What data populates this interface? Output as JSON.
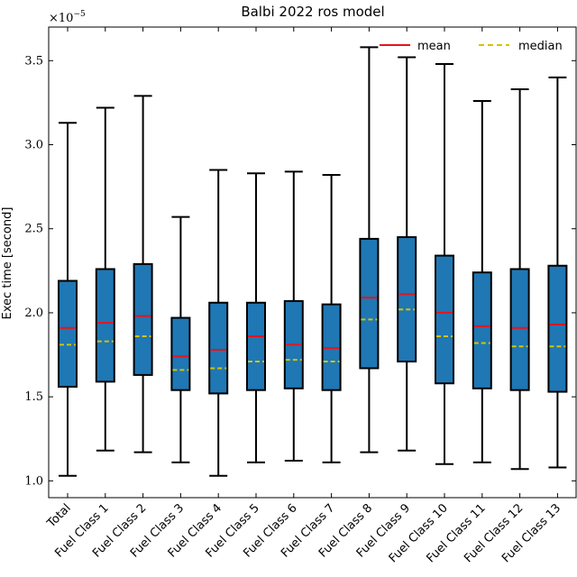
{
  "chart_data": {
    "type": "box",
    "title": "Balbi 2022 ros model",
    "ylabel": "Exec time [second]",
    "y_multiplier_label": "×10",
    "y_multiplier_exponent": "−5",
    "ylim": [
      0.9,
      3.7
    ],
    "yticks": [
      1.0,
      1.5,
      2.0,
      2.5,
      3.0,
      3.5
    ],
    "ytick_labels": [
      "1.0",
      "1.5",
      "2.0",
      "2.5",
      "3.0",
      "3.5"
    ],
    "legend": {
      "placement": "top-right",
      "entries": [
        {
          "label": "mean",
          "color": "#e8141c",
          "style": "solid"
        },
        {
          "label": "median",
          "color": "#d4c400",
          "style": "dashed"
        }
      ]
    },
    "box_color": "#1f77b4",
    "categories": [
      "Total",
      "Fuel Class 1",
      "Fuel Class 2",
      "Fuel Class 3",
      "Fuel Class 4",
      "Fuel Class 5",
      "Fuel Class 6",
      "Fuel Class 7",
      "Fuel Class 8",
      "Fuel Class 9",
      "Fuel Class 10",
      "Fuel Class 11",
      "Fuel Class 12",
      "Fuel Class 13"
    ],
    "boxes": [
      {
        "min": 1.03,
        "q1": 1.56,
        "median": 1.81,
        "mean": 1.91,
        "q3": 2.19,
        "max": 3.13
      },
      {
        "min": 1.18,
        "q1": 1.59,
        "median": 1.83,
        "mean": 1.94,
        "q3": 2.26,
        "max": 3.22
      },
      {
        "min": 1.17,
        "q1": 1.63,
        "median": 1.86,
        "mean": 1.98,
        "q3": 2.29,
        "max": 3.29
      },
      {
        "min": 1.11,
        "q1": 1.54,
        "median": 1.66,
        "mean": 1.74,
        "q3": 1.97,
        "max": 2.57
      },
      {
        "min": 1.03,
        "q1": 1.52,
        "median": 1.67,
        "mean": 1.78,
        "q3": 2.06,
        "max": 2.85
      },
      {
        "min": 1.11,
        "q1": 1.54,
        "median": 1.71,
        "mean": 1.86,
        "q3": 2.06,
        "max": 2.83
      },
      {
        "min": 1.12,
        "q1": 1.55,
        "median": 1.72,
        "mean": 1.81,
        "q3": 2.07,
        "max": 2.84
      },
      {
        "min": 1.11,
        "q1": 1.54,
        "median": 1.71,
        "mean": 1.79,
        "q3": 2.05,
        "max": 2.82
      },
      {
        "min": 1.17,
        "q1": 1.67,
        "median": 1.96,
        "mean": 2.09,
        "q3": 2.44,
        "max": 3.58
      },
      {
        "min": 1.18,
        "q1": 1.71,
        "median": 2.02,
        "mean": 2.11,
        "q3": 2.45,
        "max": 3.52
      },
      {
        "min": 1.1,
        "q1": 1.58,
        "median": 1.86,
        "mean": 2.0,
        "q3": 2.34,
        "max": 3.48
      },
      {
        "min": 1.11,
        "q1": 1.55,
        "median": 1.82,
        "mean": 1.92,
        "q3": 2.24,
        "max": 3.26
      },
      {
        "min": 1.07,
        "q1": 1.54,
        "median": 1.8,
        "mean": 1.91,
        "q3": 2.26,
        "max": 3.33
      },
      {
        "min": 1.08,
        "q1": 1.53,
        "median": 1.8,
        "mean": 1.93,
        "q3": 2.28,
        "max": 3.4
      }
    ]
  }
}
